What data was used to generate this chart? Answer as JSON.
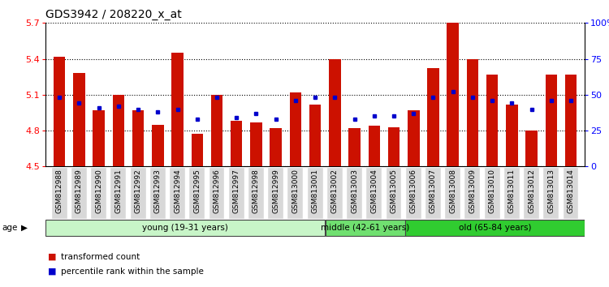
{
  "title": "GDS3942 / 208220_x_at",
  "samples": [
    "GSM812988",
    "GSM812989",
    "GSM812990",
    "GSM812991",
    "GSM812992",
    "GSM812993",
    "GSM812994",
    "GSM812995",
    "GSM812996",
    "GSM812997",
    "GSM812998",
    "GSM812999",
    "GSM813000",
    "GSM813001",
    "GSM813002",
    "GSM813003",
    "GSM813004",
    "GSM813005",
    "GSM813006",
    "GSM813007",
    "GSM813008",
    "GSM813009",
    "GSM813010",
    "GSM813011",
    "GSM813012",
    "GSM813013",
    "GSM813014"
  ],
  "red_values": [
    5.42,
    5.28,
    4.97,
    5.1,
    4.97,
    4.85,
    5.45,
    4.77,
    5.1,
    4.88,
    4.87,
    4.82,
    5.12,
    5.02,
    5.4,
    4.82,
    4.84,
    4.83,
    4.97,
    5.32,
    5.7,
    5.4,
    5.27,
    5.02,
    4.8,
    5.27,
    5.27
  ],
  "blue_values": [
    48,
    44,
    41,
    42,
    40,
    38,
    40,
    33,
    48,
    34,
    37,
    33,
    46,
    48,
    48,
    33,
    35,
    35,
    37,
    48,
    52,
    48,
    46,
    44,
    40,
    46,
    46
  ],
  "ylim_left": [
    4.5,
    5.7
  ],
  "ylim_right": [
    0,
    100
  ],
  "yticks_left": [
    4.5,
    4.8,
    5.1,
    5.4,
    5.7
  ],
  "yticks_right": [
    0,
    25,
    50,
    75,
    100
  ],
  "ytick_labels_right": [
    "0",
    "25",
    "50",
    "75",
    "100%"
  ],
  "age_groups": [
    {
      "label": "young (19-31 years)",
      "start": 0,
      "end": 14,
      "color": "#c8f5c8"
    },
    {
      "label": "middle (42-61 years)",
      "start": 14,
      "end": 18,
      "color": "#70e070"
    },
    {
      "label": "old (65-84 years)",
      "start": 18,
      "end": 27,
      "color": "#30cc30"
    }
  ],
  "bar_color": "#cc1100",
  "dot_color": "#0000cc",
  "baseline": 4.5,
  "legend_labels": [
    "transformed count",
    "percentile rank within the sample"
  ],
  "legend_colors": [
    "#cc1100",
    "#0000cc"
  ],
  "title_fontsize": 10,
  "tick_fontsize": 6.5
}
